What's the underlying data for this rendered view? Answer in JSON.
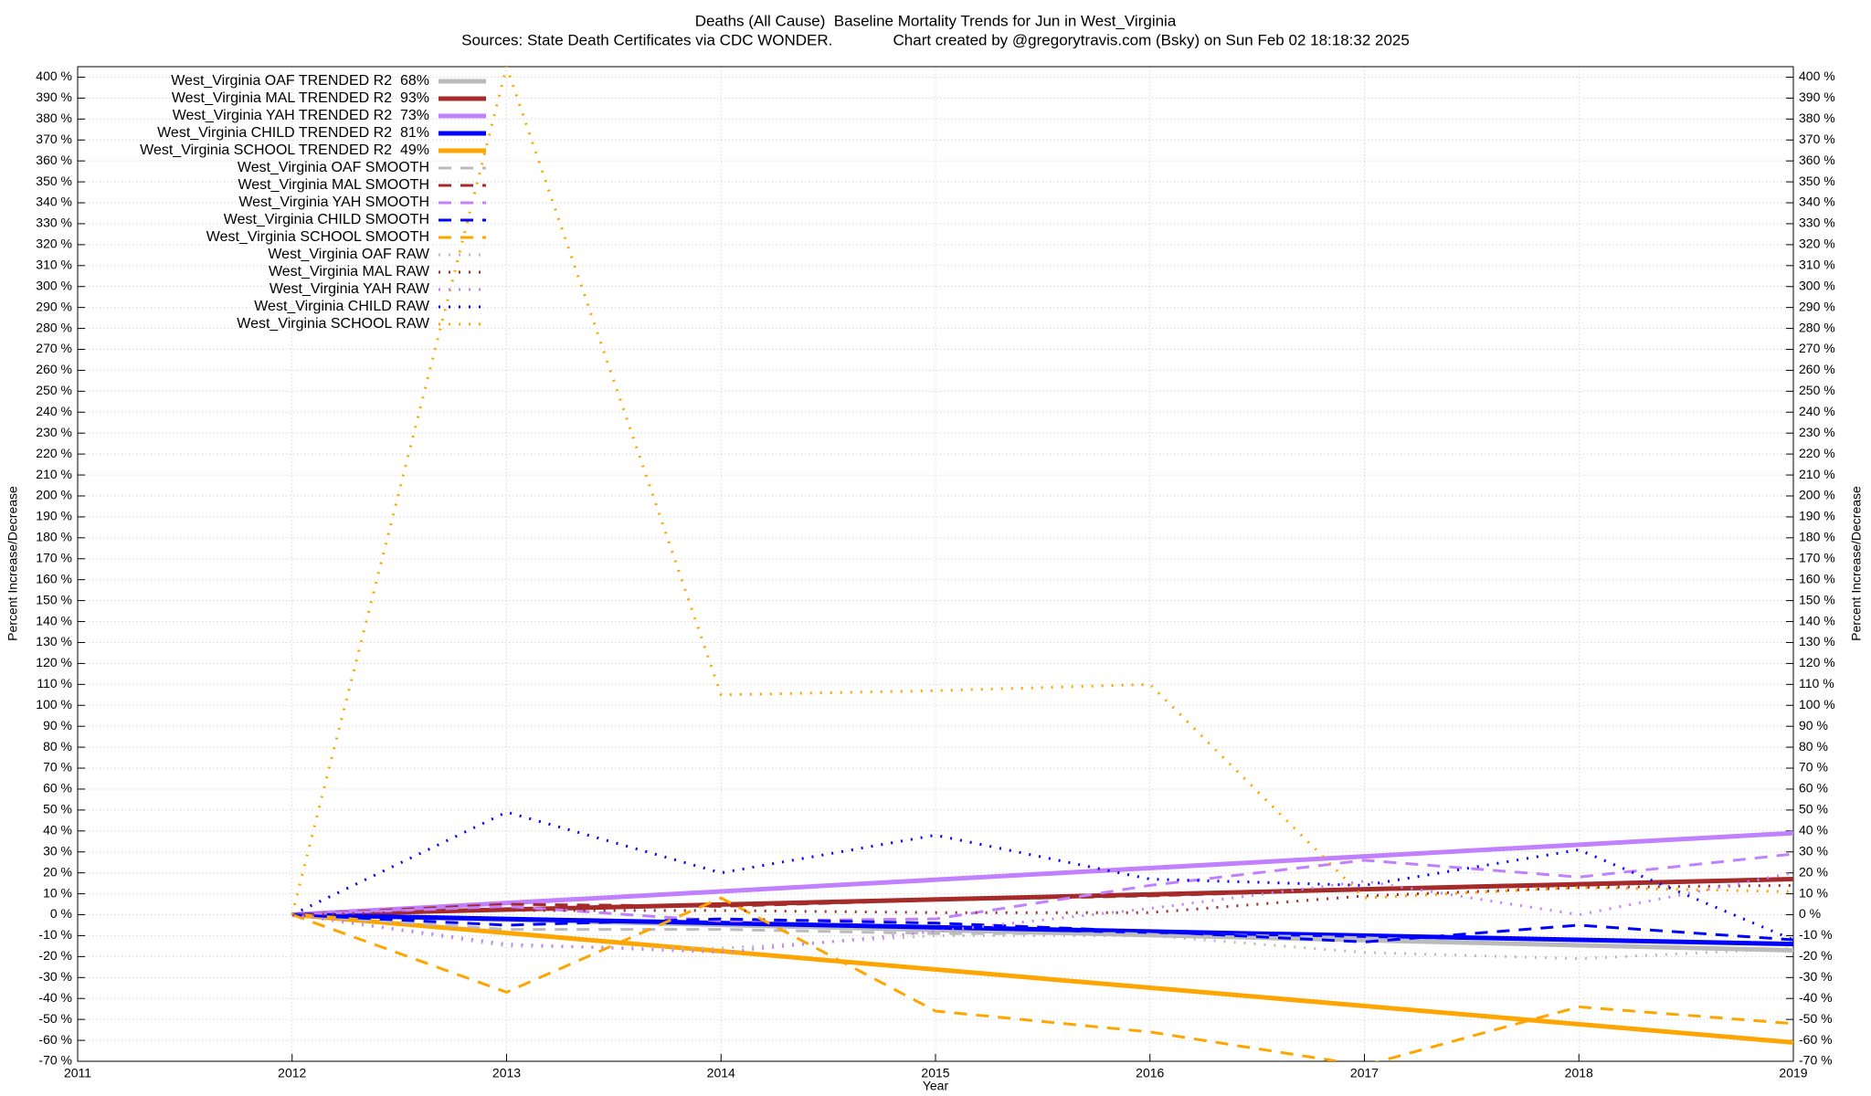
{
  "chart_data": {
    "type": "line",
    "title": "Deaths (All Cause)  Baseline Mortality Trends for Jun in West_Virginia",
    "subtitle": "Sources: State Death Certificates via CDC WONDER.              Chart created by @gregorytravis.com (Bsky) on Sun Feb 02 18:18:32 2025",
    "x_label": "Year",
    "y_label": "Percent Increase/Decrease",
    "xlim": [
      2011,
      2019
    ],
    "xticks": [
      2011,
      2012,
      2013,
      2014,
      2015,
      2016,
      2017,
      2018,
      2019
    ],
    "ylim": [
      -70,
      405
    ],
    "yticks": [
      {
        "value": -70,
        "label": "-70 %"
      },
      {
        "value": -60,
        "label": "-60 %"
      },
      {
        "value": -50,
        "label": "-50 %"
      },
      {
        "value": -40,
        "label": "-40 %"
      },
      {
        "value": -30,
        "label": "-30 %"
      },
      {
        "value": -20,
        "label": "-20 %"
      },
      {
        "value": -10,
        "label": "-10 %"
      },
      {
        "value": 0,
        "label": "0 %"
      },
      {
        "value": 10,
        "label": "10 %"
      },
      {
        "value": 20,
        "label": "20 %"
      },
      {
        "value": 30,
        "label": "30 %"
      },
      {
        "value": 40,
        "label": "40 %"
      },
      {
        "value": 50,
        "label": "50 %"
      },
      {
        "value": 60,
        "label": "60 %"
      },
      {
        "value": 70,
        "label": "70 %"
      },
      {
        "value": 80,
        "label": "80 %"
      },
      {
        "value": 90,
        "label": "90 %"
      },
      {
        "value": 100,
        "label": "100 %"
      },
      {
        "value": 110,
        "label": "110 %"
      },
      {
        "value": 120,
        "label": "120 %"
      },
      {
        "value": 130,
        "label": "130 %"
      },
      {
        "value": 140,
        "label": "140 %"
      },
      {
        "value": 150,
        "label": "150 %"
      },
      {
        "value": 160,
        "label": "160 %"
      },
      {
        "value": 170,
        "label": "170 %"
      },
      {
        "value": 180,
        "label": "180 %"
      },
      {
        "value": 190,
        "label": "190 %"
      },
      {
        "value": 200,
        "label": "200 %"
      },
      {
        "value": 210,
        "label": "210 %"
      },
      {
        "value": 220,
        "label": "220 %"
      },
      {
        "value": 230,
        "label": "230 %"
      },
      {
        "value": 240,
        "label": "240 %"
      },
      {
        "value": 250,
        "label": "250 %"
      },
      {
        "value": 260,
        "label": "260 %"
      },
      {
        "value": 270,
        "label": "270 %"
      },
      {
        "value": 280,
        "label": "280 %"
      },
      {
        "value": 290,
        "label": "290 %"
      },
      {
        "value": 300,
        "label": "300 %"
      },
      {
        "value": 310,
        "label": "310 %"
      },
      {
        "value": 320,
        "label": "320 %"
      },
      {
        "value": 330,
        "label": "330 %"
      },
      {
        "value": 340,
        "label": "340 %"
      },
      {
        "value": 350,
        "label": "350 %"
      },
      {
        "value": 360,
        "label": "360 %"
      },
      {
        "value": 370,
        "label": "370 %"
      },
      {
        "value": 380,
        "label": "380 %"
      },
      {
        "value": 390,
        "label": "390 %"
      },
      {
        "value": 400,
        "label": "400 %"
      }
    ],
    "grid": true,
    "legend": "top-left",
    "series": [
      {
        "name": "West_Virginia OAF TRENDED R2  68%",
        "color": "#bbbbbb",
        "style": "solid",
        "x": [
          2012,
          2019
        ],
        "values": [
          0,
          -17
        ]
      },
      {
        "name": "West_Virginia MAL TRENDED R2  93%",
        "color": "#a52a2a",
        "style": "solid",
        "x": [
          2012,
          2019
        ],
        "values": [
          0,
          17
        ]
      },
      {
        "name": "West_Virginia YAH TRENDED R2  73%",
        "color": "#c080ff",
        "style": "solid",
        "x": [
          2012,
          2019
        ],
        "values": [
          0,
          39
        ]
      },
      {
        "name": "West_Virginia CHILD TRENDED R2  81%",
        "color": "#0000ff",
        "style": "solid",
        "x": [
          2012,
          2019
        ],
        "values": [
          0,
          -14
        ]
      },
      {
        "name": "West_Virginia SCHOOL TRENDED R2  49%",
        "color": "#ffa500",
        "style": "solid",
        "x": [
          2012,
          2019
        ],
        "values": [
          0,
          -61
        ]
      },
      {
        "name": "West_Virginia OAF SMOOTH",
        "color": "#bbbbbb",
        "style": "dashed",
        "x": [
          2012,
          2013,
          2014,
          2015,
          2016,
          2017,
          2018,
          2019
        ],
        "values": [
          0,
          -7,
          -7,
          -9,
          -9,
          -11,
          -15,
          -17
        ]
      },
      {
        "name": "West_Virginia MAL SMOOTH",
        "color": "#a52a2a",
        "style": "dashed",
        "x": [
          2012,
          2013,
          2014,
          2015,
          2016,
          2017,
          2018,
          2019
        ],
        "values": [
          0,
          5,
          4,
          7,
          9,
          12,
          14,
          17
        ]
      },
      {
        "name": "West_Virginia YAH SMOOTH",
        "color": "#c080ff",
        "style": "dashed",
        "x": [
          2012,
          2013,
          2014,
          2015,
          2016,
          2017,
          2018,
          2019
        ],
        "values": [
          0,
          4,
          -3,
          -2,
          14,
          26,
          18,
          29
        ]
      },
      {
        "name": "West_Virginia CHILD SMOOTH",
        "color": "#0000ff",
        "style": "dashed",
        "x": [
          2012,
          2013,
          2014,
          2015,
          2016,
          2017,
          2018,
          2019
        ],
        "values": [
          0,
          -5,
          -2,
          -4,
          -8,
          -13,
          -5,
          -12
        ]
      },
      {
        "name": "West_Virginia SCHOOL SMOOTH",
        "color": "#ffa500",
        "style": "dashed",
        "x": [
          2012,
          2013,
          2014,
          2015,
          2016,
          2017,
          2018,
          2019
        ],
        "values": [
          0,
          -37,
          8,
          -46,
          -56,
          -72,
          -44,
          -52
        ]
      },
      {
        "name": "West_Virginia OAF RAW",
        "color": "#bbbbbb",
        "style": "dotted",
        "x": [
          2012,
          2013,
          2014,
          2015,
          2016,
          2017,
          2018,
          2019
        ],
        "values": [
          0,
          -15,
          -16,
          -10,
          -10,
          -18,
          -21,
          -16
        ]
      },
      {
        "name": "West_Virginia MAL RAW",
        "color": "#a52a2a",
        "style": "dotted",
        "x": [
          2012,
          2013,
          2014,
          2015,
          2016,
          2017,
          2018,
          2019
        ],
        "values": [
          0,
          2,
          2,
          1,
          1,
          9,
          13,
          14
        ]
      },
      {
        "name": "West_Virginia YAH RAW",
        "color": "#c080ff",
        "style": "dotted",
        "x": [
          2012,
          2013,
          2014,
          2015,
          2016,
          2017,
          2018,
          2019
        ],
        "values": [
          0,
          -14,
          -18,
          -8,
          3,
          16,
          0,
          20
        ]
      },
      {
        "name": "West_Virginia CHILD RAW",
        "color": "#0000ff",
        "style": "dotted",
        "x": [
          2012,
          2013,
          2014,
          2015,
          2016,
          2017,
          2018,
          2019
        ],
        "values": [
          0,
          49,
          20,
          38,
          17,
          14,
          31,
          -12
        ]
      },
      {
        "name": "West_Virginia SCHOOL RAW",
        "color": "#ffa500",
        "style": "dotted",
        "x": [
          2012,
          2013,
          2014,
          2015,
          2016,
          2017,
          2018,
          2019
        ],
        "values": [
          0,
          405,
          105,
          107,
          110,
          8,
          13,
          11
        ]
      }
    ]
  }
}
